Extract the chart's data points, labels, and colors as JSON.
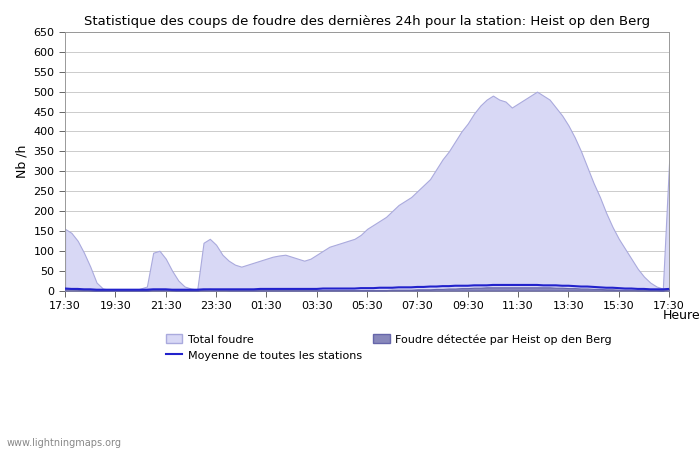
{
  "title": "Statistique des coups de foudre des dernières 24h pour la station: Heist op den Berg",
  "xlabel": "Heure",
  "ylabel": "Nb /h",
  "ylim": [
    0,
    650
  ],
  "yticks": [
    0,
    50,
    100,
    150,
    200,
    250,
    300,
    350,
    400,
    450,
    500,
    550,
    600,
    650
  ],
  "xtick_labels": [
    "17:30",
    "19:30",
    "21:30",
    "23:30",
    "01:30",
    "03:30",
    "05:30",
    "07:30",
    "09:30",
    "11:30",
    "13:30",
    "15:30",
    "17:30"
  ],
  "bg_color": "#ffffff",
  "plot_bg_color": "#ffffff",
  "grid_color": "#cccccc",
  "total_foudre_color": "#d8d8f5",
  "total_foudre_edge": "#aaaadd",
  "detected_color": "#8888bb",
  "detected_edge": "#6666aa",
  "moyenne_color": "#2222cc",
  "watermark": "www.lightningmaps.org",
  "total_foudre": [
    155,
    145,
    125,
    95,
    60,
    20,
    5,
    2,
    0,
    0,
    0,
    0,
    5,
    10,
    95,
    100,
    80,
    50,
    25,
    10,
    5,
    2,
    120,
    130,
    115,
    90,
    75,
    65,
    60,
    65,
    70,
    75,
    80,
    85,
    88,
    90,
    85,
    80,
    75,
    80,
    90,
    100,
    110,
    115,
    120,
    125,
    130,
    140,
    155,
    165,
    175,
    185,
    200,
    215,
    225,
    235,
    250,
    265,
    280,
    305,
    330,
    350,
    375,
    400,
    420,
    445,
    465,
    480,
    490,
    480,
    475,
    460,
    470,
    480,
    490,
    500,
    490,
    480,
    460,
    440,
    415,
    385,
    350,
    310,
    270,
    235,
    195,
    160,
    130,
    105,
    80,
    55,
    35,
    20,
    10,
    5,
    325
  ],
  "detected": [
    5,
    4,
    3,
    2,
    1,
    0,
    0,
    0,
    0,
    0,
    0,
    0,
    0,
    0,
    2,
    3,
    2,
    1,
    0,
    0,
    0,
    0,
    3,
    4,
    3,
    2,
    1,
    1,
    1,
    1,
    1,
    1,
    1,
    1,
    1,
    1,
    1,
    1,
    1,
    1,
    1,
    1,
    1,
    1,
    1,
    1,
    1,
    1,
    1,
    1,
    1,
    1,
    2,
    2,
    2,
    2,
    3,
    3,
    3,
    4,
    4,
    5,
    5,
    6,
    6,
    7,
    7,
    8,
    8,
    8,
    8,
    8,
    8,
    8,
    8,
    8,
    8,
    8,
    7,
    7,
    6,
    6,
    5,
    5,
    4,
    4,
    3,
    3,
    2,
    2,
    2,
    1,
    1,
    1,
    1,
    0,
    5
  ],
  "moyenne": [
    5,
    4,
    4,
    3,
    3,
    2,
    2,
    2,
    2,
    2,
    2,
    2,
    2,
    2,
    3,
    3,
    3,
    2,
    2,
    2,
    2,
    2,
    3,
    3,
    3,
    3,
    3,
    3,
    3,
    3,
    3,
    4,
    4,
    4,
    4,
    4,
    4,
    4,
    4,
    4,
    4,
    5,
    5,
    5,
    5,
    5,
    5,
    6,
    6,
    6,
    7,
    7,
    7,
    8,
    8,
    8,
    9,
    9,
    10,
    10,
    11,
    11,
    12,
    12,
    12,
    13,
    13,
    13,
    14,
    14,
    14,
    14,
    14,
    14,
    14,
    14,
    13,
    13,
    13,
    12,
    12,
    11,
    10,
    10,
    9,
    8,
    7,
    7,
    6,
    5,
    5,
    4,
    4,
    3,
    3,
    3,
    4
  ]
}
